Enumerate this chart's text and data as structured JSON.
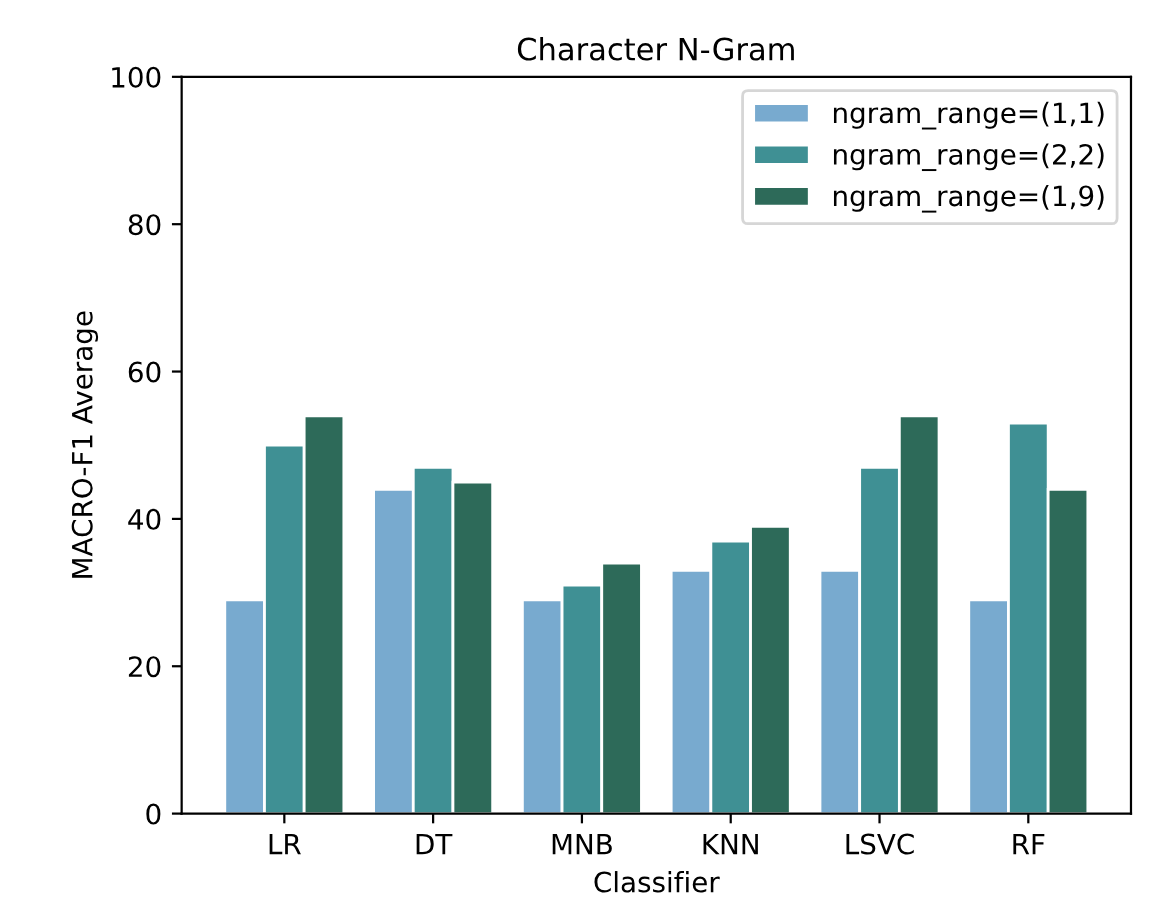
{
  "chart_data": {
    "type": "bar",
    "title": "Character N-Gram",
    "xlabel": "Classifier",
    "ylabel": "MACRO-F1 Average",
    "categories": [
      "LR",
      "DT",
      "MNB",
      "KNN",
      "LSVC",
      "RF"
    ],
    "series": [
      {
        "name": "ngram_range=(1,1)",
        "color": "#78aacf",
        "values": [
          29,
          44,
          29,
          33,
          33,
          29
        ]
      },
      {
        "name": "ngram_range=(2,2)",
        "color": "#3f9094",
        "values": [
          50,
          47,
          31,
          37,
          47,
          53
        ]
      },
      {
        "name": "ngram_range=(1,9)",
        "color": "#2d6a59",
        "values": [
          54,
          45,
          34,
          39,
          54,
          44
        ]
      }
    ],
    "ylim": [
      0,
      100
    ],
    "yticks": [
      0,
      20,
      40,
      60,
      80,
      100
    ],
    "grid": false,
    "legend": "top right"
  }
}
